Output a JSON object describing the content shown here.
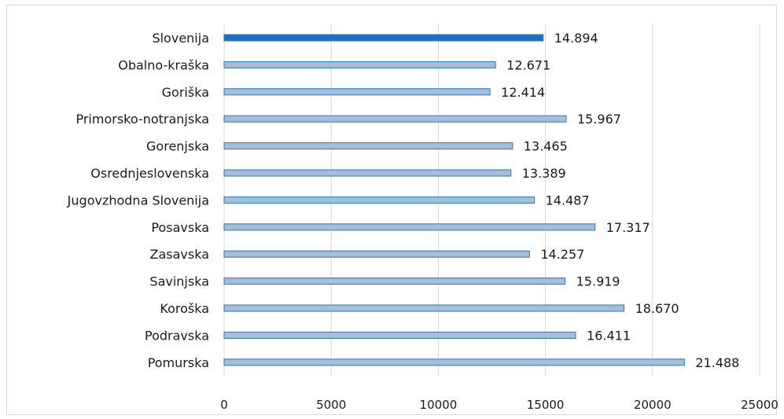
{
  "chart_data": {
    "type": "bar",
    "orientation": "horizontal",
    "categories": [
      "Slovenija",
      "Obalno-kraška",
      "Goriška",
      "Primorsko-notranjska",
      "Gorenjska",
      "Osrednjeslovenska",
      "Jugovzhodna Slovenija",
      "Posavska",
      "Zasavska",
      "Savinjska",
      "Koroška",
      "Podravska",
      "Pomurska"
    ],
    "values": [
      14894,
      12671,
      12414,
      15967,
      13465,
      13389,
      14487,
      17317,
      14257,
      15919,
      18670,
      16411,
      21488
    ],
    "value_labels": [
      "14.894",
      "12.671",
      "12.414",
      "15.967",
      "13.465",
      "13.389",
      "14.487",
      "17.317",
      "14.257",
      "15.919",
      "18.670",
      "16.411",
      "21.488"
    ],
    "highlight_category": "Slovenija",
    "xlim": [
      0,
      25000
    ],
    "x_ticks": [
      0,
      5000,
      10000,
      15000,
      20000,
      25000
    ],
    "x_tick_labels": [
      "0",
      "5000",
      "10000",
      "15000",
      "20000",
      "25000"
    ],
    "grid": true,
    "legend": "none",
    "colors": {
      "highlight_fill": "#1f6fbf",
      "bar_fill": "#a6bfd9",
      "bar_stroke": "#2e75b6",
      "grid": "#d9d9d9"
    }
  }
}
